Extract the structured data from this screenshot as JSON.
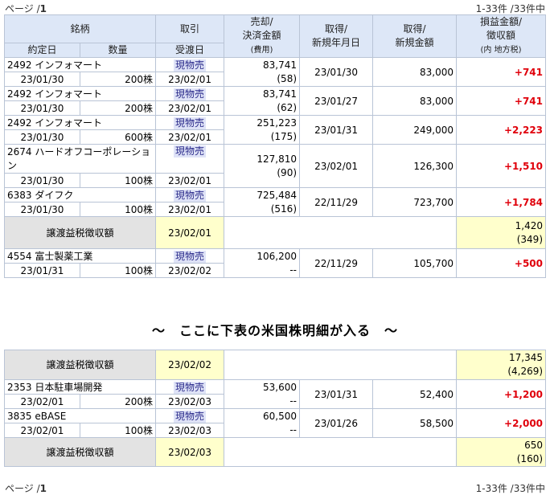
{
  "pager": {
    "page_prefix": "ページ /",
    "page_num": "1",
    "range": "1-33件 /33件中"
  },
  "headers": {
    "meigara": "銘柄",
    "torihiki": "取引",
    "baikyaku": "売却/\n決済金額",
    "hiyou": "(費用)",
    "shutoku_date": "取得/\n新規年月日",
    "shutoku_kingaku": "取得/\n新規金額",
    "soneki": "損益金額/\n徴収額",
    "soneki_sub": "(内 地方税)",
    "yakujou": "約定日",
    "suryou": "数量",
    "ukewatashi": "受渡日"
  },
  "group1": [
    {
      "name": "2492 インフォマート",
      "trade": "現物売",
      "proceeds": "83,741",
      "fee": "(58)",
      "acq_date": "23/01/30",
      "acq_amount": "83,000",
      "pl": "+741",
      "contract_date": "23/01/30",
      "qty": "200株",
      "settle_date": "23/02/01"
    },
    {
      "name": "2492 インフォマート",
      "trade": "現物売",
      "proceeds": "83,741",
      "fee": "(62)",
      "acq_date": "23/01/27",
      "acq_amount": "83,000",
      "pl": "+741",
      "contract_date": "23/01/30",
      "qty": "200株",
      "settle_date": "23/02/01"
    },
    {
      "name": "2492 インフォマート",
      "trade": "現物売",
      "proceeds": "251,223",
      "fee": "(175)",
      "acq_date": "23/01/31",
      "acq_amount": "249,000",
      "pl": "+2,223",
      "contract_date": "23/01/30",
      "qty": "600株",
      "settle_date": "23/02/01"
    }
  ],
  "row_hardoff": {
    "name": "2674 ハードオフコーポレーション",
    "trade": "現物売",
    "proceeds": "127,810",
    "fee": "(90)",
    "acq_date": "23/02/01",
    "acq_amount": "126,300",
    "pl": "+1,510",
    "contract_date": "23/01/30",
    "qty": "100株",
    "settle_date": "23/02/01"
  },
  "row_daifuku": {
    "name": "6383 ダイフク",
    "trade": "現物売",
    "proceeds": "725,484",
    "fee": "(516)",
    "acq_date": "22/11/29",
    "acq_amount": "723,700",
    "pl": "+1,784",
    "contract_date": "23/01/30",
    "qty": "100株",
    "settle_date": "23/02/01"
  },
  "summary1": {
    "label": "譲渡益税徴収額",
    "date": "23/02/01",
    "amount": "1,420",
    "local": "(349)"
  },
  "row_fujiseiyaku": {
    "name": "4554 富士製薬工業",
    "trade": "現物売",
    "proceeds": "106,200",
    "fee": "--",
    "acq_date": "22/11/29",
    "acq_amount": "105,700",
    "pl": "+500",
    "contract_date": "23/01/31",
    "qty": "100株",
    "settle_date": "23/02/02"
  },
  "note": "〜　ここに下表の米国株明細が入る　〜",
  "summary2": {
    "label": "譲渡益税徴収額",
    "date": "23/02/02",
    "amount": "17,345",
    "local": "(4,269)"
  },
  "group2": [
    {
      "name": "2353 日本駐車場開発",
      "trade": "現物売",
      "proceeds": "53,600",
      "fee": "--",
      "acq_date": "23/01/31",
      "acq_amount": "52,400",
      "pl": "+1,200",
      "contract_date": "23/02/01",
      "qty": "200株",
      "settle_date": "23/02/03"
    },
    {
      "name": "3835 eBASE",
      "trade": "現物売",
      "proceeds": "60,500",
      "fee": "--",
      "acq_date": "23/01/26",
      "acq_amount": "58,500",
      "pl": "+2,000",
      "contract_date": "23/02/01",
      "qty": "100株",
      "settle_date": "23/02/03"
    }
  ],
  "summary3": {
    "label": "譲渡益税徴収額",
    "date": "23/02/03",
    "amount": "650",
    "local": "(160)"
  }
}
